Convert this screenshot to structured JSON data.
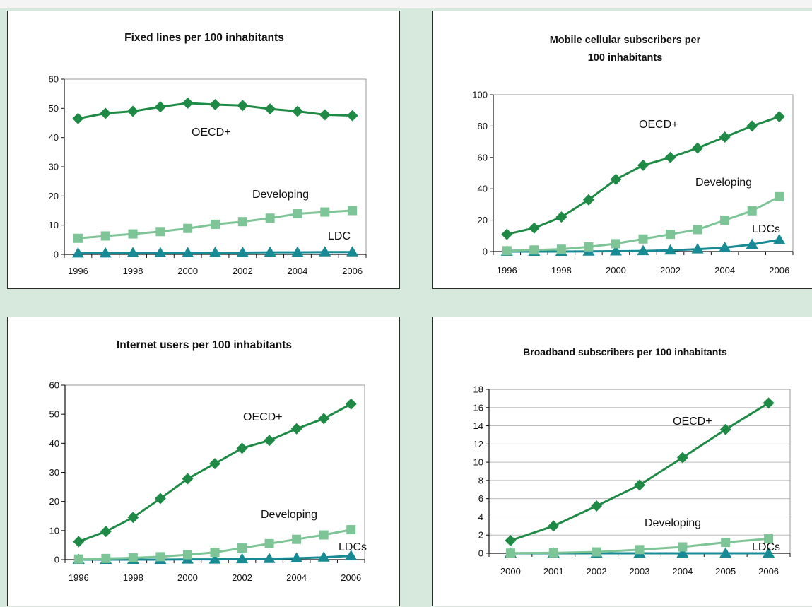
{
  "colors": {
    "oecd": "#1f8a46",
    "developing": "#7dc496",
    "ldc": "#178a94",
    "background": "#d7e9dc",
    "gridline": "#bbbbbb"
  },
  "chart_data": [
    {
      "type": "line",
      "title": [
        "Fixed lines per 100 inhabitants"
      ],
      "x": [
        1996,
        1997,
        1998,
        1999,
        2000,
        2001,
        2002,
        2003,
        2004,
        2005,
        2006
      ],
      "x_tick_labels": [
        "1996",
        "1998",
        "2000",
        "2002",
        "2004",
        "2006"
      ],
      "ylim": [
        0,
        60
      ],
      "y_ticks": [
        0,
        10,
        20,
        30,
        40,
        50,
        60
      ],
      "grid": false,
      "series": [
        {
          "name": "OECD+",
          "marker": "diamond",
          "values": [
            46.5,
            48.3,
            49.0,
            50.5,
            51.8,
            51.3,
            51.0,
            49.8,
            49.0,
            47.8,
            47.5
          ]
        },
        {
          "name": "Developing",
          "marker": "square",
          "values": [
            5.5,
            6.3,
            7.0,
            7.8,
            8.9,
            10.3,
            11.2,
            12.4,
            13.9,
            14.5,
            15.0
          ]
        },
        {
          "name": "LDC",
          "marker": "triangle",
          "values": [
            0.4,
            0.4,
            0.5,
            0.5,
            0.5,
            0.6,
            0.6,
            0.7,
            0.7,
            0.8,
            0.8
          ]
        }
      ]
    },
    {
      "type": "line",
      "title": [
        "Mobile cellular subscribers per",
        "100 inhabitants"
      ],
      "x": [
        1996,
        1997,
        1998,
        1999,
        2000,
        2001,
        2002,
        2003,
        2004,
        2005,
        2006
      ],
      "x_tick_labels": [
        "1996",
        "1998",
        "2000",
        "2002",
        "2004",
        "2006"
      ],
      "ylim": [
        0,
        100
      ],
      "y_ticks": [
        0,
        20,
        40,
        60,
        80,
        100
      ],
      "grid": false,
      "series": [
        {
          "name": "OECD+",
          "marker": "diamond",
          "values": [
            11,
            15,
            22,
            33,
            46,
            55,
            60,
            66,
            73,
            80,
            86
          ]
        },
        {
          "name": "Developing",
          "marker": "square",
          "values": [
            0.5,
            1,
            1.5,
            3,
            5,
            8,
            11,
            14,
            20,
            26,
            35
          ]
        },
        {
          "name": "LDCs",
          "marker": "triangle",
          "values": [
            0,
            0,
            0,
            0.1,
            0.2,
            0.4,
            0.8,
            1.5,
            2.5,
            4.5,
            7.5
          ]
        }
      ]
    },
    {
      "type": "line",
      "title": [
        "Internet users  per 100 inhabitants"
      ],
      "x": [
        1996,
        1997,
        1998,
        1999,
        2000,
        2001,
        2002,
        2003,
        2004,
        2005,
        2006
      ],
      "x_tick_labels": [
        "1996",
        "1998",
        "2000",
        "2002",
        "2004",
        "2006"
      ],
      "ylim": [
        0,
        60
      ],
      "y_ticks": [
        0,
        10,
        20,
        30,
        40,
        50,
        60
      ],
      "grid": false,
      "series": [
        {
          "name": "OECD+",
          "marker": "diamond",
          "values": [
            6.2,
            9.7,
            14.5,
            21,
            27.8,
            33,
            38.3,
            41,
            45,
            48.5,
            53.5
          ]
        },
        {
          "name": "Developing",
          "marker": "square",
          "values": [
            0.2,
            0.4,
            0.6,
            1.0,
            1.7,
            2.5,
            4.0,
            5.5,
            7.0,
            8.5,
            10.3
          ]
        },
        {
          "name": "LDCs",
          "marker": "triangle",
          "values": [
            0,
            0,
            0,
            0,
            0.1,
            0.1,
            0.2,
            0.3,
            0.5,
            0.8,
            1.3
          ]
        }
      ]
    },
    {
      "type": "line",
      "title": [
        "Broadband subscribers  per 100 inhabitants"
      ],
      "x": [
        2000,
        2001,
        2002,
        2003,
        2004,
        2005,
        2006
      ],
      "x_tick_labels": [
        "2000",
        "2001",
        "2002",
        "2003",
        "2004",
        "2005",
        "2006"
      ],
      "ylim": [
        0,
        18
      ],
      "y_ticks": [
        0,
        2,
        4,
        6,
        8,
        10,
        12,
        14,
        16,
        18
      ],
      "grid": true,
      "series": [
        {
          "name": "OECD+",
          "marker": "diamond",
          "values": [
            1.4,
            3.0,
            5.2,
            7.5,
            10.5,
            13.6,
            16.5
          ]
        },
        {
          "name": "Developing",
          "marker": "square",
          "values": [
            0.02,
            0.05,
            0.15,
            0.4,
            0.7,
            1.2,
            1.6
          ]
        },
        {
          "name": "LDCs",
          "marker": "triangle",
          "values": [
            0,
            0,
            0,
            0,
            0,
            0,
            0
          ]
        }
      ]
    }
  ]
}
